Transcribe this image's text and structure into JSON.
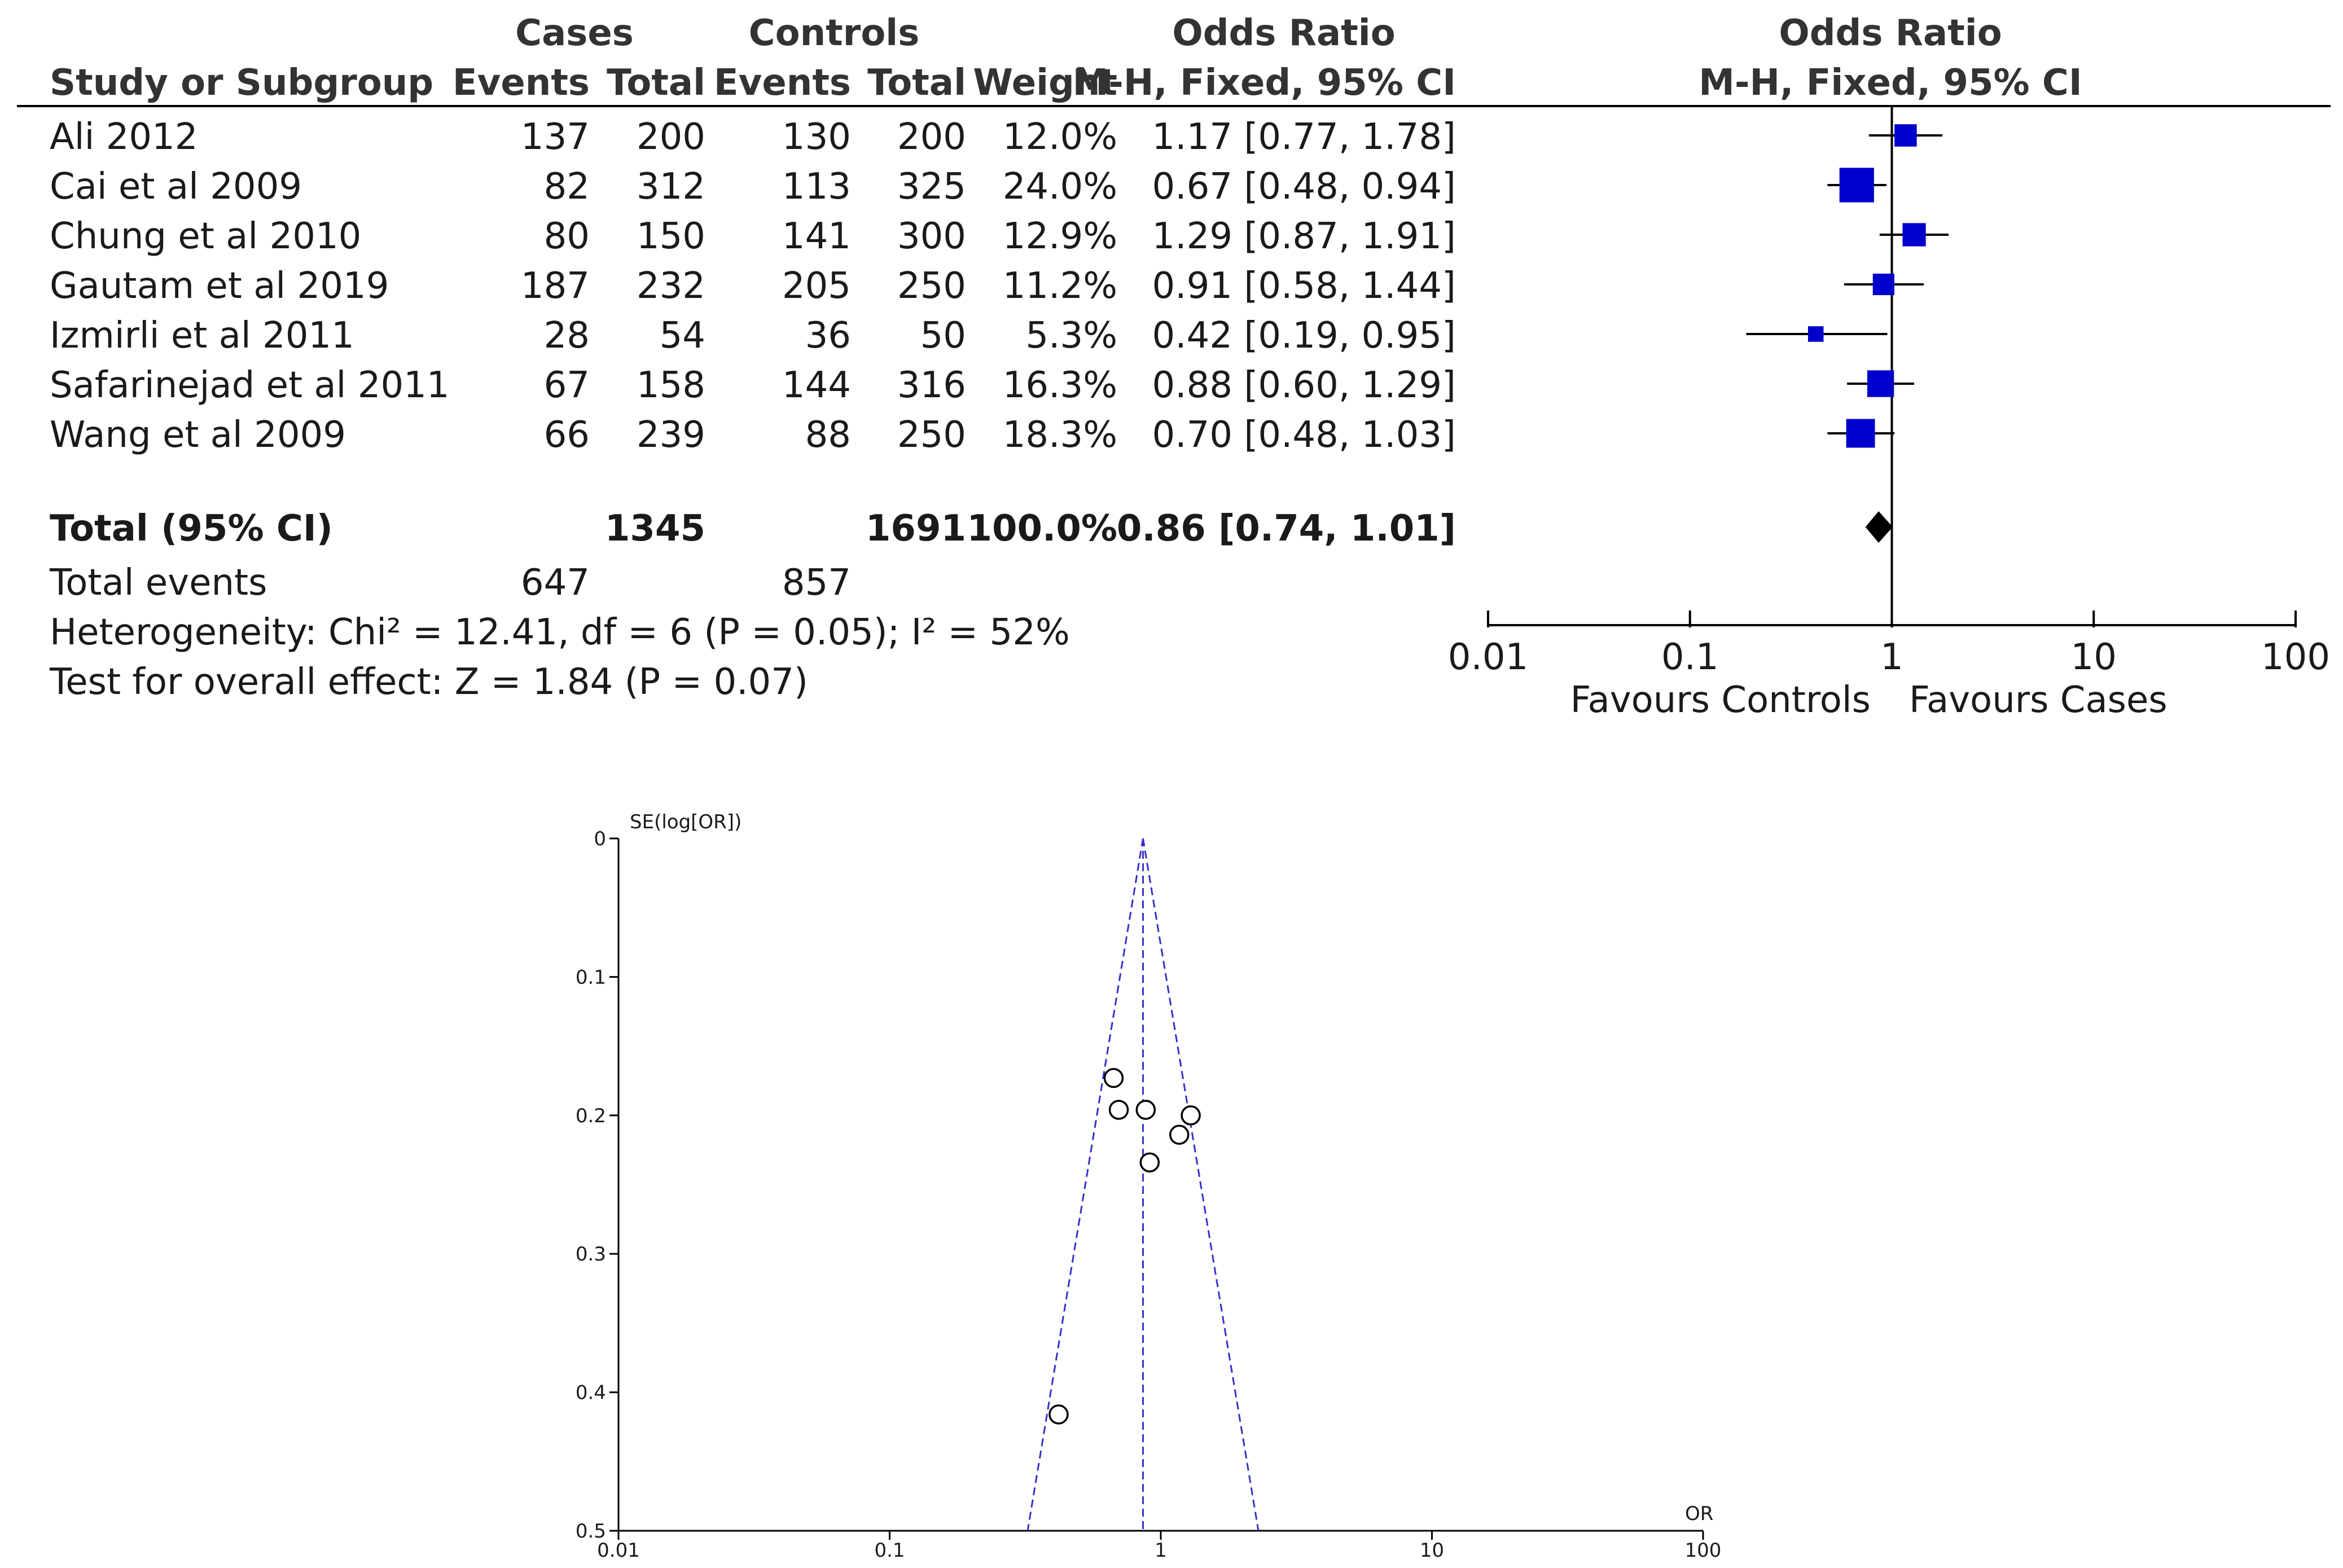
{
  "forest": {
    "header": {
      "cases": "Cases",
      "controls": "Controls",
      "odds_ratio": "Odds Ratio",
      "odds_ratio_plot": "Odds Ratio",
      "study": "Study or Subgroup",
      "events_cases": "Events",
      "total_cases": "Total",
      "events_controls": "Events",
      "total_controls": "Total",
      "weight": "Weight",
      "method": "M-H, Fixed, 95% CI",
      "method_plot": "M-H, Fixed, 95% CI"
    },
    "studies": [
      {
        "name": "Ali 2012",
        "case_events": "137",
        "case_total": "200",
        "ctrl_events": "130",
        "ctrl_total": "200",
        "weight": "12.0%",
        "ci_text": "1.17 [0.77, 1.78]"
      },
      {
        "name": "Cai et al 2009",
        "case_events": "82",
        "case_total": "312",
        "ctrl_events": "113",
        "ctrl_total": "325",
        "weight": "24.0%",
        "ci_text": "0.67 [0.48, 0.94]"
      },
      {
        "name": "Chung et al 2010",
        "case_events": "80",
        "case_total": "150",
        "ctrl_events": "141",
        "ctrl_total": "300",
        "weight": "12.9%",
        "ci_text": "1.29 [0.87, 1.91]"
      },
      {
        "name": "Gautam et al 2019",
        "case_events": "187",
        "case_total": "232",
        "ctrl_events": "205",
        "ctrl_total": "250",
        "weight": "11.2%",
        "ci_text": "0.91 [0.58, 1.44]"
      },
      {
        "name": "Izmirli et al 2011",
        "case_events": "28",
        "case_total": "54",
        "ctrl_events": "36",
        "ctrl_total": "50",
        "weight": "5.3%",
        "ci_text": "0.42 [0.19, 0.95]"
      },
      {
        "name": "Safarinejad et al 2011",
        "case_events": "67",
        "case_total": "158",
        "ctrl_events": "144",
        "ctrl_total": "316",
        "weight": "16.3%",
        "ci_text": "0.88 [0.60, 1.29]"
      },
      {
        "name": "Wang et al 2009",
        "case_events": "66",
        "case_total": "239",
        "ctrl_events": "88",
        "ctrl_total": "250",
        "weight": "18.3%",
        "ci_text": "0.70 [0.48, 1.03]"
      }
    ],
    "total": {
      "label": "Total (95% CI)",
      "case_total": "1345",
      "ctrl_total": "1691",
      "weight": "100.0%",
      "ci_text": "0.86 [0.74, 1.01]"
    },
    "total_events": {
      "label": "Total events",
      "cases": "647",
      "controls": "857"
    },
    "heterogeneity": "Heterogeneity: Chi² = 12.41, df = 6 (P = 0.05); I² = 52%",
    "overall_effect": "Test for overall effect: Z = 1.84 (P = 0.07)",
    "favours_left": "Favours Controls",
    "favours_right": "Favours Cases"
  },
  "funnel": {
    "y_title": "SE(log[OR])",
    "x_title": "OR"
  },
  "colors": {
    "marker": "#0000cc",
    "funnel_line": "#3333cc",
    "axis": "#000000"
  },
  "chart_data": [
    {
      "type": "forest",
      "scale": "log",
      "xlim": [
        0.01,
        100
      ],
      "x_ticks": [
        "0.01",
        "0.1",
        "1",
        "10",
        "100"
      ],
      "x_tick_values": [
        0.01,
        0.1,
        1,
        10,
        100
      ],
      "studies": [
        {
          "name": "Ali 2012",
          "or": 1.17,
          "lower": 0.77,
          "upper": 1.78,
          "weight": 12.0
        },
        {
          "name": "Cai et al 2009",
          "or": 0.67,
          "lower": 0.48,
          "upper": 0.94,
          "weight": 24.0
        },
        {
          "name": "Chung et al 2010",
          "or": 1.29,
          "lower": 0.87,
          "upper": 1.91,
          "weight": 12.9
        },
        {
          "name": "Gautam et al 2019",
          "or": 0.91,
          "lower": 0.58,
          "upper": 1.44,
          "weight": 11.2
        },
        {
          "name": "Izmirli et al 2011",
          "or": 0.42,
          "lower": 0.19,
          "upper": 0.95,
          "weight": 5.3
        },
        {
          "name": "Safarinejad et al 2011",
          "or": 0.88,
          "lower": 0.6,
          "upper": 1.29,
          "weight": 16.3
        },
        {
          "name": "Wang et al 2009",
          "or": 0.7,
          "lower": 0.48,
          "upper": 1.03,
          "weight": 18.3
        }
      ],
      "pooled": {
        "or": 0.86,
        "lower": 0.74,
        "upper": 1.01
      }
    },
    {
      "type": "scatter",
      "x_scale": "log",
      "xlim": [
        0.01,
        100
      ],
      "ylim": [
        0,
        0.5
      ],
      "y_inverted": true,
      "x_ticks": [
        "0.01",
        "0.1",
        "1",
        "10",
        "100"
      ],
      "x_tick_values": [
        0.01,
        0.1,
        1,
        10,
        100
      ],
      "y_ticks": [
        "0",
        "0.1",
        "0.2",
        "0.3",
        "0.4",
        "0.5"
      ],
      "y_tick_values": [
        0,
        0.1,
        0.2,
        0.3,
        0.4,
        0.5
      ],
      "pooled_or": 0.86,
      "points": [
        {
          "or": 1.17,
          "se": 0.214
        },
        {
          "or": 0.67,
          "se": 0.173
        },
        {
          "or": 1.29,
          "se": 0.2
        },
        {
          "or": 0.91,
          "se": 0.234
        },
        {
          "or": 0.42,
          "se": 0.416
        },
        {
          "or": 0.88,
          "se": 0.196
        },
        {
          "or": 0.7,
          "se": 0.196
        }
      ]
    }
  ]
}
